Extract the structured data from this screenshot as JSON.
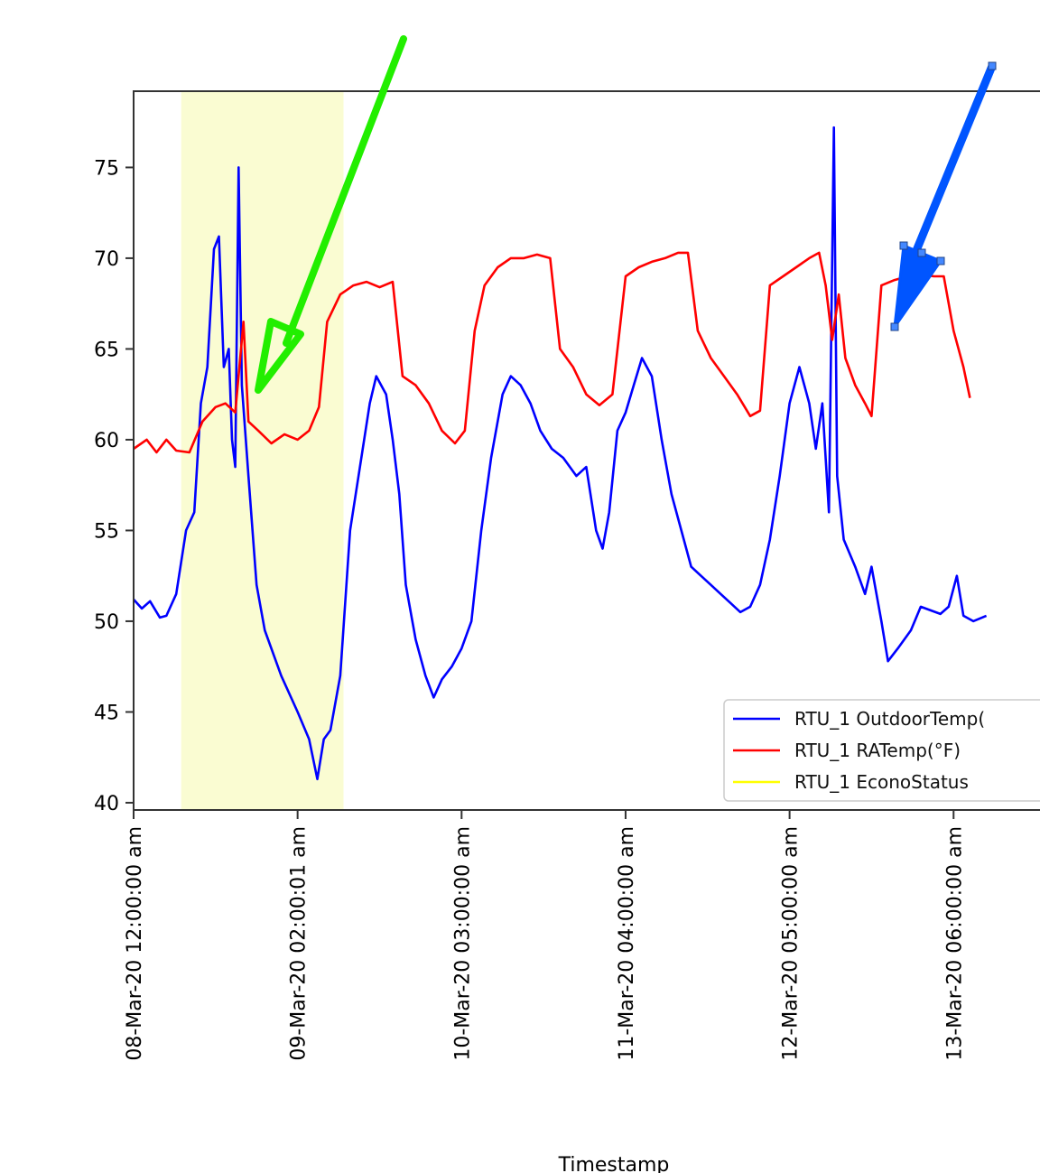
{
  "chart_data": {
    "type": "line",
    "title": "",
    "xlabel": "Timestamp",
    "ylabel": "",
    "ylim": [
      39.6,
      79.2
    ],
    "yticks": [
      40,
      45,
      50,
      55,
      60,
      65,
      70,
      75
    ],
    "xtick_labels": [
      "08-Mar-20 12:00:00 am",
      "09-Mar-20 02:00:01 am",
      "10-Mar-20 03:00:00 am",
      "11-Mar-20 04:00:00 am",
      "12-Mar-20 05:00:00 am",
      "13-Mar-20 06:00:00 am"
    ],
    "xrange_days": [
      0,
      5.56
    ],
    "shaded_region": {
      "x_days": [
        0.29,
        1.28
      ],
      "color": "#fafcd2"
    },
    "legend": {
      "position": "lower-right"
    },
    "series": [
      {
        "name": "RTU_1 OutdoorTemp(",
        "color": "#0000ff",
        "points": [
          [
            0.0,
            51.2
          ],
          [
            0.05,
            50.7
          ],
          [
            0.1,
            51.1
          ],
          [
            0.16,
            50.2
          ],
          [
            0.2,
            50.3
          ],
          [
            0.26,
            51.5
          ],
          [
            0.32,
            55.0
          ],
          [
            0.37,
            56.0
          ],
          [
            0.41,
            62.0
          ],
          [
            0.45,
            64.0
          ],
          [
            0.49,
            70.5
          ],
          [
            0.52,
            71.2
          ],
          [
            0.55,
            64.0
          ],
          [
            0.58,
            65.0
          ],
          [
            0.6,
            60.0
          ],
          [
            0.62,
            58.5
          ],
          [
            0.64,
            75.0
          ],
          [
            0.66,
            63.0
          ],
          [
            0.7,
            58.0
          ],
          [
            0.75,
            52.0
          ],
          [
            0.8,
            49.5
          ],
          [
            0.9,
            47.0
          ],
          [
            1.0,
            45.0
          ],
          [
            1.07,
            43.5
          ],
          [
            1.12,
            41.3
          ],
          [
            1.16,
            43.5
          ],
          [
            1.2,
            44.0
          ],
          [
            1.26,
            47.0
          ],
          [
            1.32,
            55.0
          ],
          [
            1.38,
            58.5
          ],
          [
            1.44,
            62.0
          ],
          [
            1.48,
            63.5
          ],
          [
            1.54,
            62.5
          ],
          [
            1.58,
            60.0
          ],
          [
            1.62,
            57.0
          ],
          [
            1.66,
            52.0
          ],
          [
            1.72,
            49.0
          ],
          [
            1.78,
            47.0
          ],
          [
            1.83,
            45.8
          ],
          [
            1.88,
            46.8
          ],
          [
            1.94,
            47.5
          ],
          [
            2.0,
            48.5
          ],
          [
            2.06,
            50.0
          ],
          [
            2.12,
            55.0
          ],
          [
            2.18,
            59.0
          ],
          [
            2.25,
            62.5
          ],
          [
            2.3,
            63.5
          ],
          [
            2.36,
            63.0
          ],
          [
            2.42,
            62.0
          ],
          [
            2.48,
            60.5
          ],
          [
            2.55,
            59.5
          ],
          [
            2.62,
            59.0
          ],
          [
            2.7,
            58.0
          ],
          [
            2.76,
            58.5
          ],
          [
            2.82,
            55.0
          ],
          [
            2.86,
            54.0
          ],
          [
            2.9,
            56.0
          ],
          [
            2.95,
            60.5
          ],
          [
            3.0,
            61.5
          ],
          [
            3.05,
            63.0
          ],
          [
            3.1,
            64.5
          ],
          [
            3.16,
            63.5
          ],
          [
            3.22,
            60.0
          ],
          [
            3.28,
            57.0
          ],
          [
            3.34,
            55.0
          ],
          [
            3.4,
            53.0
          ],
          [
            3.46,
            52.5
          ],
          [
            3.52,
            52.0
          ],
          [
            3.58,
            51.5
          ],
          [
            3.64,
            51.0
          ],
          [
            3.7,
            50.5
          ],
          [
            3.76,
            50.8
          ],
          [
            3.82,
            52.0
          ],
          [
            3.88,
            54.5
          ],
          [
            3.94,
            58.0
          ],
          [
            4.0,
            62.0
          ],
          [
            4.06,
            64.0
          ],
          [
            4.12,
            62.0
          ],
          [
            4.16,
            59.5
          ],
          [
            4.2,
            62.0
          ],
          [
            4.24,
            56.0
          ],
          [
            4.27,
            77.2
          ],
          [
            4.29,
            58.0
          ],
          [
            4.33,
            54.5
          ],
          [
            4.4,
            53.0
          ],
          [
            4.46,
            51.5
          ],
          [
            4.5,
            53.0
          ],
          [
            4.56,
            50.0
          ],
          [
            4.6,
            47.8
          ],
          [
            4.66,
            48.5
          ],
          [
            4.74,
            49.5
          ],
          [
            4.8,
            50.8
          ],
          [
            4.86,
            50.6
          ],
          [
            4.92,
            50.4
          ],
          [
            4.97,
            50.8
          ],
          [
            5.02,
            52.5
          ],
          [
            5.06,
            50.3
          ],
          [
            5.12,
            50.0
          ],
          [
            5.2,
            50.3
          ]
        ]
      },
      {
        "name": "RTU_1 RATemp(°F)",
        "color": "#ff0000",
        "points": [
          [
            0.0,
            59.5
          ],
          [
            0.08,
            60.0
          ],
          [
            0.14,
            59.3
          ],
          [
            0.2,
            60.0
          ],
          [
            0.26,
            59.4
          ],
          [
            0.34,
            59.3
          ],
          [
            0.42,
            61.0
          ],
          [
            0.5,
            61.8
          ],
          [
            0.56,
            62.0
          ],
          [
            0.62,
            61.5
          ],
          [
            0.67,
            66.5
          ],
          [
            0.7,
            61.0
          ],
          [
            0.76,
            60.5
          ],
          [
            0.84,
            59.8
          ],
          [
            0.92,
            60.3
          ],
          [
            1.0,
            60.0
          ],
          [
            1.07,
            60.5
          ],
          [
            1.13,
            61.8
          ],
          [
            1.18,
            66.5
          ],
          [
            1.26,
            68.0
          ],
          [
            1.34,
            68.5
          ],
          [
            1.42,
            68.7
          ],
          [
            1.5,
            68.4
          ],
          [
            1.58,
            68.7
          ],
          [
            1.64,
            63.5
          ],
          [
            1.72,
            63.0
          ],
          [
            1.8,
            62.0
          ],
          [
            1.88,
            60.5
          ],
          [
            1.96,
            59.8
          ],
          [
            2.02,
            60.5
          ],
          [
            2.08,
            66.0
          ],
          [
            2.14,
            68.5
          ],
          [
            2.22,
            69.5
          ],
          [
            2.3,
            70.0
          ],
          [
            2.38,
            70.0
          ],
          [
            2.46,
            70.2
          ],
          [
            2.54,
            70.0
          ],
          [
            2.6,
            65.0
          ],
          [
            2.68,
            64.0
          ],
          [
            2.76,
            62.5
          ],
          [
            2.84,
            61.9
          ],
          [
            2.92,
            62.5
          ],
          [
            3.0,
            69.0
          ],
          [
            3.08,
            69.5
          ],
          [
            3.16,
            69.8
          ],
          [
            3.24,
            70.0
          ],
          [
            3.32,
            70.3
          ],
          [
            3.38,
            70.3
          ],
          [
            3.44,
            66.0
          ],
          [
            3.52,
            64.5
          ],
          [
            3.6,
            63.5
          ],
          [
            3.68,
            62.5
          ],
          [
            3.76,
            61.3
          ],
          [
            3.82,
            61.6
          ],
          [
            3.88,
            68.5
          ],
          [
            3.96,
            69.0
          ],
          [
            4.04,
            69.5
          ],
          [
            4.12,
            70.0
          ],
          [
            4.18,
            70.3
          ],
          [
            4.22,
            68.5
          ],
          [
            4.26,
            65.5
          ],
          [
            4.3,
            68.0
          ],
          [
            4.34,
            64.5
          ],
          [
            4.4,
            63.0
          ],
          [
            4.46,
            62.0
          ],
          [
            4.5,
            61.3
          ],
          [
            4.56,
            68.5
          ],
          [
            4.64,
            68.8
          ],
          [
            4.72,
            69.0
          ],
          [
            4.8,
            69.1
          ],
          [
            4.88,
            69.0
          ],
          [
            4.94,
            69.0
          ],
          [
            5.0,
            66.0
          ],
          [
            5.06,
            64.0
          ],
          [
            5.1,
            62.3
          ]
        ]
      },
      {
        "name": "RTU_1 EconoStatus",
        "color": "#ffff00",
        "points": []
      }
    ]
  },
  "annotations": {
    "green_arrow_color": "#22ee00",
    "blue_arrow_color": "#0055ff"
  }
}
